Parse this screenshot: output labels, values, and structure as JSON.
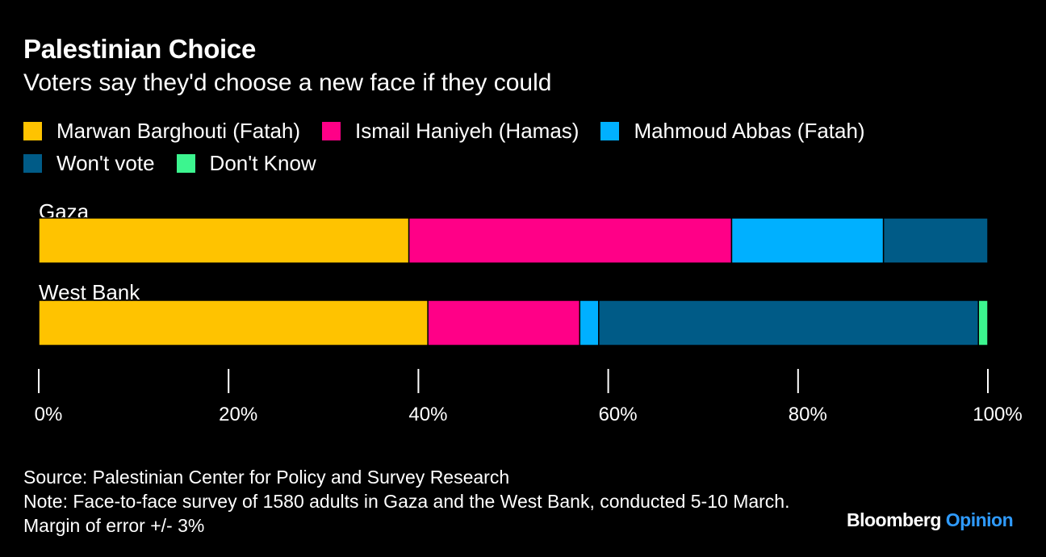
{
  "header": {
    "title": "Palestinian Choice",
    "subtitle": "Voters say they'd choose a new face if they could"
  },
  "footer": {
    "source": "Source: Palestinian Center for Policy and Survey Research",
    "note": "Note: Face-to-face survey of 1580 adults in Gaza and the West Bank, conducted 5-10 March. Margin of error +/- 3%"
  },
  "logo": {
    "brand": "Bloomberg",
    "section": "Opinion"
  },
  "chart_data": {
    "type": "bar",
    "orientation": "horizontal",
    "stacked": true,
    "title": "Palestinian Choice",
    "subtitle": "Voters say they'd choose a new face if they could",
    "categories": [
      "Gaza",
      "West Bank"
    ],
    "series": [
      {
        "name": "Marwan Barghouti (Fatah)",
        "color": "#ffc300",
        "values": [
          39,
          41
        ]
      },
      {
        "name": "Ismail Haniyeh (Hamas)",
        "color": "#ff0087",
        "values": [
          34,
          16
        ]
      },
      {
        "name": "Mahmoud Abbas (Fatah)",
        "color": "#00b0ff",
        "values": [
          16,
          2
        ]
      },
      {
        "name": "Won't vote",
        "color": "#005b87",
        "values": [
          11,
          40
        ]
      },
      {
        "name": "Don't Know",
        "color": "#3cf58f",
        "values": [
          0,
          1
        ]
      }
    ],
    "xlim": [
      0,
      100
    ],
    "xticks": [
      0,
      20,
      40,
      60,
      80,
      100
    ],
    "xtick_labels": [
      "0%",
      "20%",
      "40%",
      "60%",
      "80%",
      "100%"
    ],
    "legend_position": "top"
  }
}
